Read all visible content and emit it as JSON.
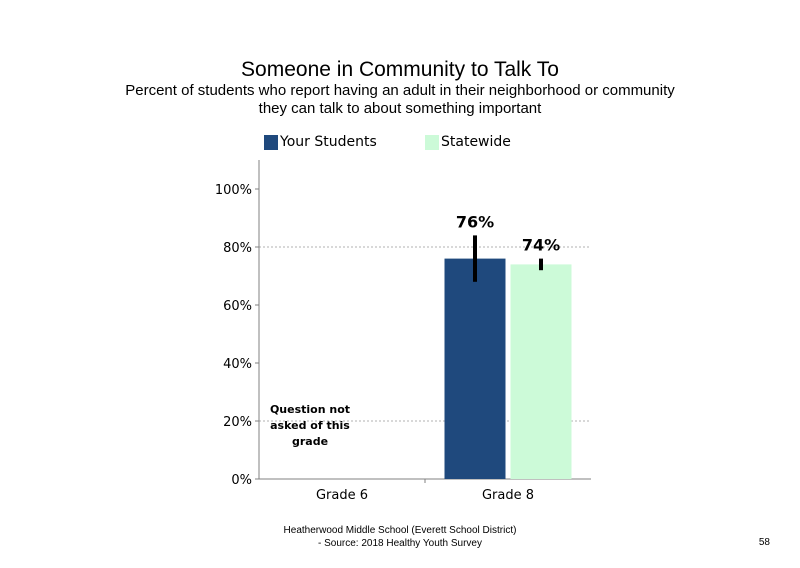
{
  "chart_data": {
    "type": "bar",
    "title": "Someone in Community to Talk To",
    "subtitle_lines": [
      "Percent of students who report having an adult in their neighborhood or community",
      "they can talk to about something important"
    ],
    "categories": [
      "Grade 6",
      "Grade 8"
    ],
    "series": [
      {
        "name": "Your Students",
        "color": "#1f497d",
        "values": [
          null,
          76
        ],
        "error_low": [
          null,
          68
        ],
        "error_high": [
          null,
          84
        ],
        "labels": [
          "",
          "76%"
        ]
      },
      {
        "name": "Statewide",
        "color": "#ccfad8",
        "values": [
          null,
          74
        ],
        "error_low": [
          null,
          72
        ],
        "error_high": [
          null,
          76
        ],
        "labels": [
          "",
          "74%"
        ]
      }
    ],
    "ylim": [
      0,
      110
    ],
    "yticks": [
      0,
      20,
      40,
      60,
      80,
      100
    ],
    "ytick_labels": [
      "0%",
      "20%",
      "40%",
      "60%",
      "80%",
      "100%"
    ],
    "grid": "dotted at 20% and 80%",
    "legend_position": "top",
    "annotation": "Question not asked of this grade"
  },
  "footer": {
    "line1": "Heatherwood Middle School (Everett School District)",
    "line2": "- Source: 2018 Healthy  Youth Survey"
  },
  "page_number": "58"
}
